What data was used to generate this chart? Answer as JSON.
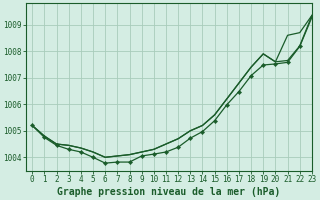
{
  "background_color": "#d4ede3",
  "grid_color": "#a8ccbb",
  "line_color": "#1a5c2a",
  "title": "Graphe pression niveau de la mer (hPa)",
  "xlim": [
    -0.5,
    23
  ],
  "ylim": [
    1003.5,
    1009.8
  ],
  "yticks": [
    1004,
    1005,
    1006,
    1007,
    1008,
    1009
  ],
  "xticks": [
    0,
    1,
    2,
    3,
    4,
    5,
    6,
    7,
    8,
    9,
    10,
    11,
    12,
    13,
    14,
    15,
    16,
    17,
    18,
    19,
    20,
    21,
    22,
    23
  ],
  "y_top": [
    1005.2,
    1004.8,
    1004.5,
    1004.45,
    1004.35,
    1004.2,
    1004.0,
    1004.05,
    1004.1,
    1004.2,
    1004.3,
    1004.5,
    1004.7,
    1005.0,
    1005.2,
    1005.6,
    1006.2,
    1006.8,
    1007.4,
    1007.9,
    1007.6,
    1008.6,
    1008.7,
    1009.35
  ],
  "y_mid": [
    1005.2,
    1004.8,
    1004.5,
    1004.45,
    1004.35,
    1004.2,
    1004.0,
    1004.05,
    1004.1,
    1004.2,
    1004.3,
    1004.5,
    1004.7,
    1005.0,
    1005.2,
    1005.6,
    1006.2,
    1006.8,
    1007.4,
    1007.9,
    1007.6,
    1007.65,
    1008.2,
    1009.35
  ],
  "y_bot": [
    1005.2,
    1004.75,
    1004.45,
    1004.3,
    1004.2,
    1004.0,
    1003.78,
    1003.82,
    1003.82,
    1004.05,
    1004.12,
    1004.2,
    1004.38,
    1004.72,
    1004.97,
    1005.38,
    1005.98,
    1006.48,
    1007.08,
    1007.48,
    1007.52,
    1007.58,
    1008.18,
    1009.28
  ],
  "title_fontsize": 7,
  "tick_fontsize": 5.5
}
